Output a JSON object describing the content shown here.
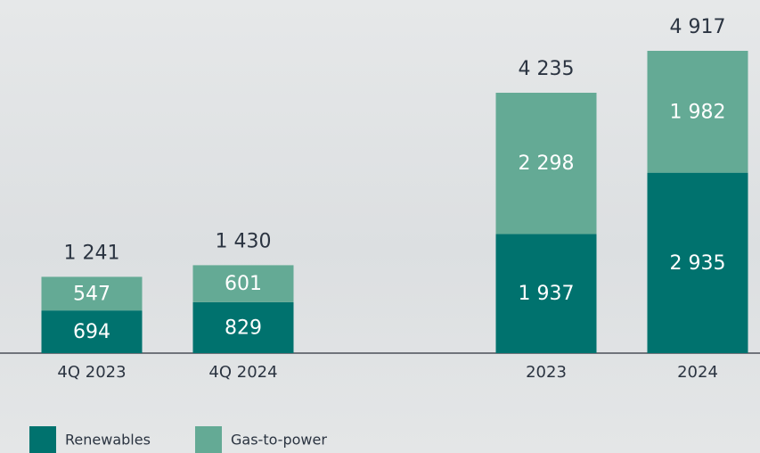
{
  "chart_data": {
    "type": "stacked-bar",
    "categories": [
      "4Q 2023",
      "4Q 2024",
      "2023",
      "2024"
    ],
    "series": [
      {
        "name": "Renewables",
        "color": "#00726e",
        "values": [
          694,
          829,
          1937,
          2935
        ],
        "value_labels": [
          "694",
          "829",
          "1 937",
          "2 935"
        ]
      },
      {
        "name": "Gas-to-power",
        "color": "#64aa95",
        "values": [
          547,
          601,
          2298,
          1982
        ],
        "value_labels": [
          "547",
          "601",
          "2 298",
          "1 982"
        ]
      }
    ],
    "totals": {
      "values": [
        1241,
        1430,
        4235,
        4917
      ],
      "value_labels": [
        "1 241",
        "1 430",
        "4 235",
        "4 917"
      ]
    }
  }
}
